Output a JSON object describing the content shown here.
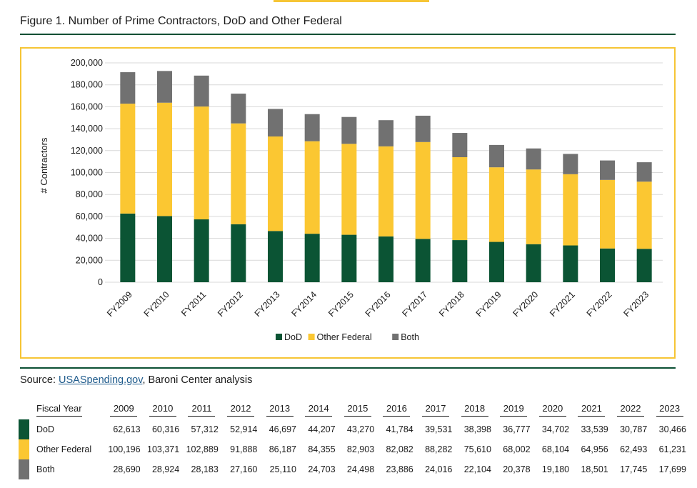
{
  "figure": {
    "title": "Figure 1. Number of Prime Contractors, DoD and Other Federal"
  },
  "colors": {
    "dod": "#0b5434",
    "other": "#fbc732",
    "both": "#717171",
    "accent": "#f6c535",
    "rule": "#0b4f33"
  },
  "chart_data": {
    "type": "bar",
    "stacked": true,
    "categories": [
      "FY2009",
      "FY2010",
      "FY2011",
      "FY2012",
      "FY2013",
      "FY2014",
      "FY2015",
      "FY2016",
      "FY2017",
      "FY2018",
      "FY2019",
      "FY2020",
      "FY2021",
      "FY2022",
      "FY2023"
    ],
    "series": [
      {
        "name": "DoD",
        "values": [
          62613,
          60316,
          57312,
          52914,
          46697,
          44207,
          43270,
          41784,
          39531,
          38398,
          36777,
          34702,
          33539,
          30787,
          30466
        ]
      },
      {
        "name": "Other Federal",
        "values": [
          100196,
          103371,
          102889,
          91888,
          86187,
          84355,
          82903,
          82082,
          88282,
          75610,
          68002,
          68104,
          64956,
          62493,
          61231
        ]
      },
      {
        "name": "Both",
        "values": [
          28690,
          28924,
          28183,
          27160,
          25110,
          24703,
          24498,
          23886,
          24016,
          22104,
          20378,
          19180,
          18501,
          17745,
          17699
        ]
      }
    ],
    "ylabel": "# Contractors",
    "ylim": [
      0,
      200000
    ],
    "yticks": [
      "0",
      "20,000",
      "40,000",
      "60,000",
      "80,000",
      "100,000",
      "120,000",
      "140,000",
      "160,000",
      "180,000",
      "200,000"
    ],
    "grid": true,
    "legend": "bottom-center"
  },
  "source": {
    "prefix": "Source: ",
    "link": "USASpending.gov",
    "suffix": ", Baroni Center analysis"
  },
  "table": {
    "header_label": "Fiscal Year",
    "years": [
      "2009",
      "2010",
      "2011",
      "2012",
      "2013",
      "2014",
      "2015",
      "2016",
      "2017",
      "2018",
      "2019",
      "2020",
      "2021",
      "2022",
      "2023"
    ],
    "rows": [
      {
        "label": "DoD",
        "values": [
          "62,613",
          "60,316",
          "57,312",
          "52,914",
          "46,697",
          "44,207",
          "43,270",
          "41,784",
          "39,531",
          "38,398",
          "36,777",
          "34,702",
          "33,539",
          "30,787",
          "30,466"
        ]
      },
      {
        "label": "Other Federal",
        "values": [
          "100,196",
          "103,371",
          "102,889",
          "91,888",
          "86,187",
          "84,355",
          "82,903",
          "82,082",
          "88,282",
          "75,610",
          "68,002",
          "68,104",
          "64,956",
          "62,493",
          "61,231"
        ]
      },
      {
        "label": "Both",
        "values": [
          "28,690",
          "28,924",
          "28,183",
          "27,160",
          "25,110",
          "24,703",
          "24,498",
          "23,886",
          "24,016",
          "22,104",
          "20,378",
          "19,180",
          "18,501",
          "17,745",
          "17,699"
        ]
      }
    ]
  }
}
